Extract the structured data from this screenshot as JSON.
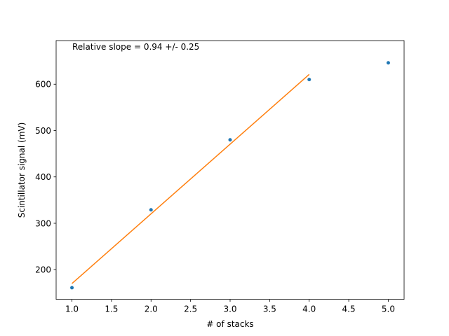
{
  "chart_data": {
    "type": "scatter",
    "title": "",
    "xlabel": "# of stacks",
    "ylabel": "Scintillator signal (mV)",
    "xlim": [
      0.8,
      5.2
    ],
    "ylim": [
      136,
      694
    ],
    "xticks": [
      "1.0",
      "1.5",
      "2.0",
      "2.5",
      "3.0",
      "3.5",
      "4.0",
      "4.5",
      "5.0"
    ],
    "yticks": [
      "200",
      "300",
      "400",
      "500",
      "600"
    ],
    "annotation": "Relative slope = 0.94 +/- 0.25",
    "grid": false,
    "series": [
      {
        "kind": "scatter",
        "color": "#1f77b4",
        "x": [
          1,
          2,
          3,
          4,
          5
        ],
        "y": [
          161,
          329,
          480,
          610,
          646
        ]
      },
      {
        "kind": "line",
        "color": "#ff7f0e",
        "x": [
          1,
          4
        ],
        "y": [
          170,
          621
        ]
      }
    ]
  }
}
